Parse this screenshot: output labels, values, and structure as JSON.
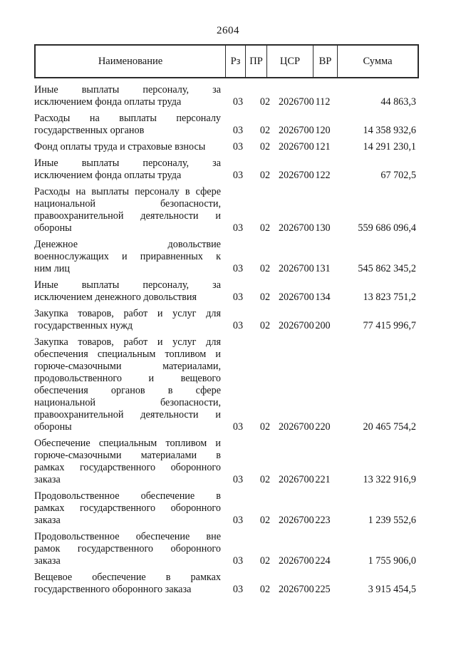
{
  "page": {
    "number": "2604"
  },
  "table": {
    "headers": [
      {
        "key": "name",
        "label": "Наименование"
      },
      {
        "key": "rz",
        "label": "Рз"
      },
      {
        "key": "pr",
        "label": "ПР"
      },
      {
        "key": "csr",
        "label": "ЦСР"
      },
      {
        "key": "vr",
        "label": "ВР"
      },
      {
        "key": "sum",
        "label": "Сумма"
      }
    ],
    "rows": [
      {
        "name_lines": [
          "Иные выплаты персоналу, за",
          "исключением фонда оплаты труда"
        ],
        "rz": "03",
        "pr": "02",
        "csr": "2026700",
        "vr": "112",
        "sum": "44 863,3"
      },
      {
        "name_lines": [
          "Расходы на выплаты персоналу",
          "государственных органов"
        ],
        "rz": "03",
        "pr": "02",
        "csr": "2026700",
        "vr": "120",
        "sum": "14 358 932,6"
      },
      {
        "name_lines": [
          "Фонд оплаты труда и страховые взносы"
        ],
        "rz": "03",
        "pr": "02",
        "csr": "2026700",
        "vr": "121",
        "sum": "14 291 230,1"
      },
      {
        "name_lines": [
          "Иные выплаты персоналу, за",
          "исключением фонда оплаты труда"
        ],
        "rz": "03",
        "pr": "02",
        "csr": "2026700",
        "vr": "122",
        "sum": "67 702,5"
      },
      {
        "name_lines": [
          "Расходы на выплаты персоналу в сфере",
          "национальной безопасности,",
          "правоохранительной деятельности и",
          "обороны"
        ],
        "rz": "03",
        "pr": "02",
        "csr": "2026700",
        "vr": "130",
        "sum": "559 686 096,4"
      },
      {
        "name_lines": [
          "Денежное довольствие",
          "военнослужащих и приравненных к",
          "ним лиц"
        ],
        "rz": "03",
        "pr": "02",
        "csr": "2026700",
        "vr": "131",
        "sum": "545 862 345,2"
      },
      {
        "name_lines": [
          "Иные выплаты персоналу, за",
          "исключением денежного довольствия"
        ],
        "rz": "03",
        "pr": "02",
        "csr": "2026700",
        "vr": "134",
        "sum": "13 823 751,2"
      },
      {
        "name_lines": [
          "Закупка товаров, работ и услуг для",
          "государственных нужд"
        ],
        "rz": "03",
        "pr": "02",
        "csr": "2026700",
        "vr": "200",
        "sum": "77 415 996,7"
      },
      {
        "name_lines": [
          "Закупка товаров, работ и услуг для",
          "обеспечения специальным топливом и",
          "горюче-смазочными материалами,",
          "продовольственного и вещевого",
          "обеспечения органов в сфере",
          "национальной безопасности,",
          "правоохранительной деятельности и",
          "обороны"
        ],
        "rz": "03",
        "pr": "02",
        "csr": "2026700",
        "vr": "220",
        "sum": "20 465 754,2"
      },
      {
        "name_lines": [
          "Обеспечение специальным топливом и",
          "горюче-смазочными материалами в",
          "рамках государственного оборонного",
          "заказа"
        ],
        "rz": "03",
        "pr": "02",
        "csr": "2026700",
        "vr": "221",
        "sum": "13 322 916,9"
      },
      {
        "name_lines": [
          "Продовольственное обеспечение в",
          "рамках государственного оборонного",
          "заказа"
        ],
        "rz": "03",
        "pr": "02",
        "csr": "2026700",
        "vr": "223",
        "sum": "1 239 552,6"
      },
      {
        "name_lines": [
          "Продовольственное обеспечение вне",
          "рамок государственного оборонного",
          "заказа"
        ],
        "rz": "03",
        "pr": "02",
        "csr": "2026700",
        "vr": "224",
        "sum": "1 755 906,0"
      },
      {
        "name_lines": [
          "Вещевое обеспечение в рамках",
          "государственного оборонного заказа"
        ],
        "rz": "03",
        "pr": "02",
        "csr": "2026700",
        "vr": "225",
        "sum": "3 915 454,5"
      }
    ]
  }
}
